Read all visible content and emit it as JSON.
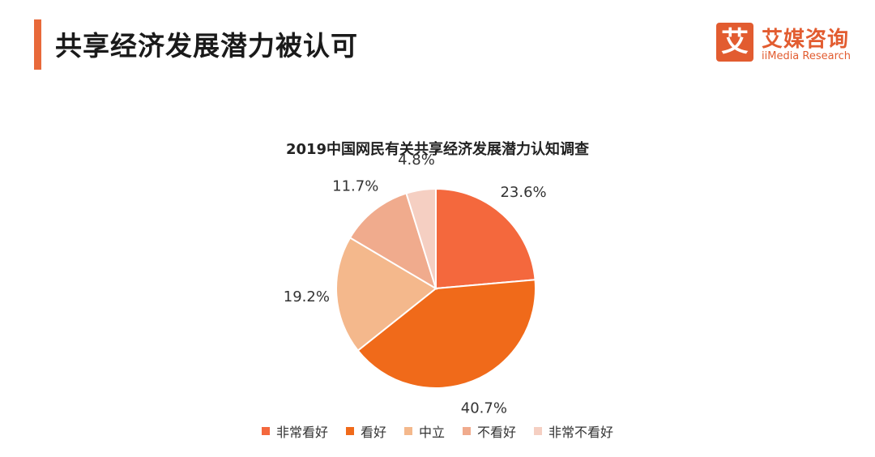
{
  "header": {
    "title": "共享经济发展潜力被认可"
  },
  "logo": {
    "cn": "艾媒咨询",
    "en": "iiMedia Research",
    "mark": "艾"
  },
  "chart_data": {
    "type": "pie",
    "title": "2019中国网民有关共享经济发展潜力认知调查",
    "slices": [
      {
        "label": "非常看好",
        "value": 23.6,
        "display": "23.6%",
        "color": "#f4683d"
      },
      {
        "label": "看好",
        "value": 40.7,
        "display": "40.7%",
        "color": "#f06a1a"
      },
      {
        "label": "中立",
        "value": 19.2,
        "display": "19.2%",
        "color": "#f4b88c"
      },
      {
        "label": "不看好",
        "value": 11.7,
        "display": "11.7%",
        "color": "#f0ab8d"
      },
      {
        "label": "非常不看好",
        "value": 4.8,
        "display": "4.8%",
        "color": "#f5cfc2"
      }
    ],
    "legend_position": "bottom"
  }
}
